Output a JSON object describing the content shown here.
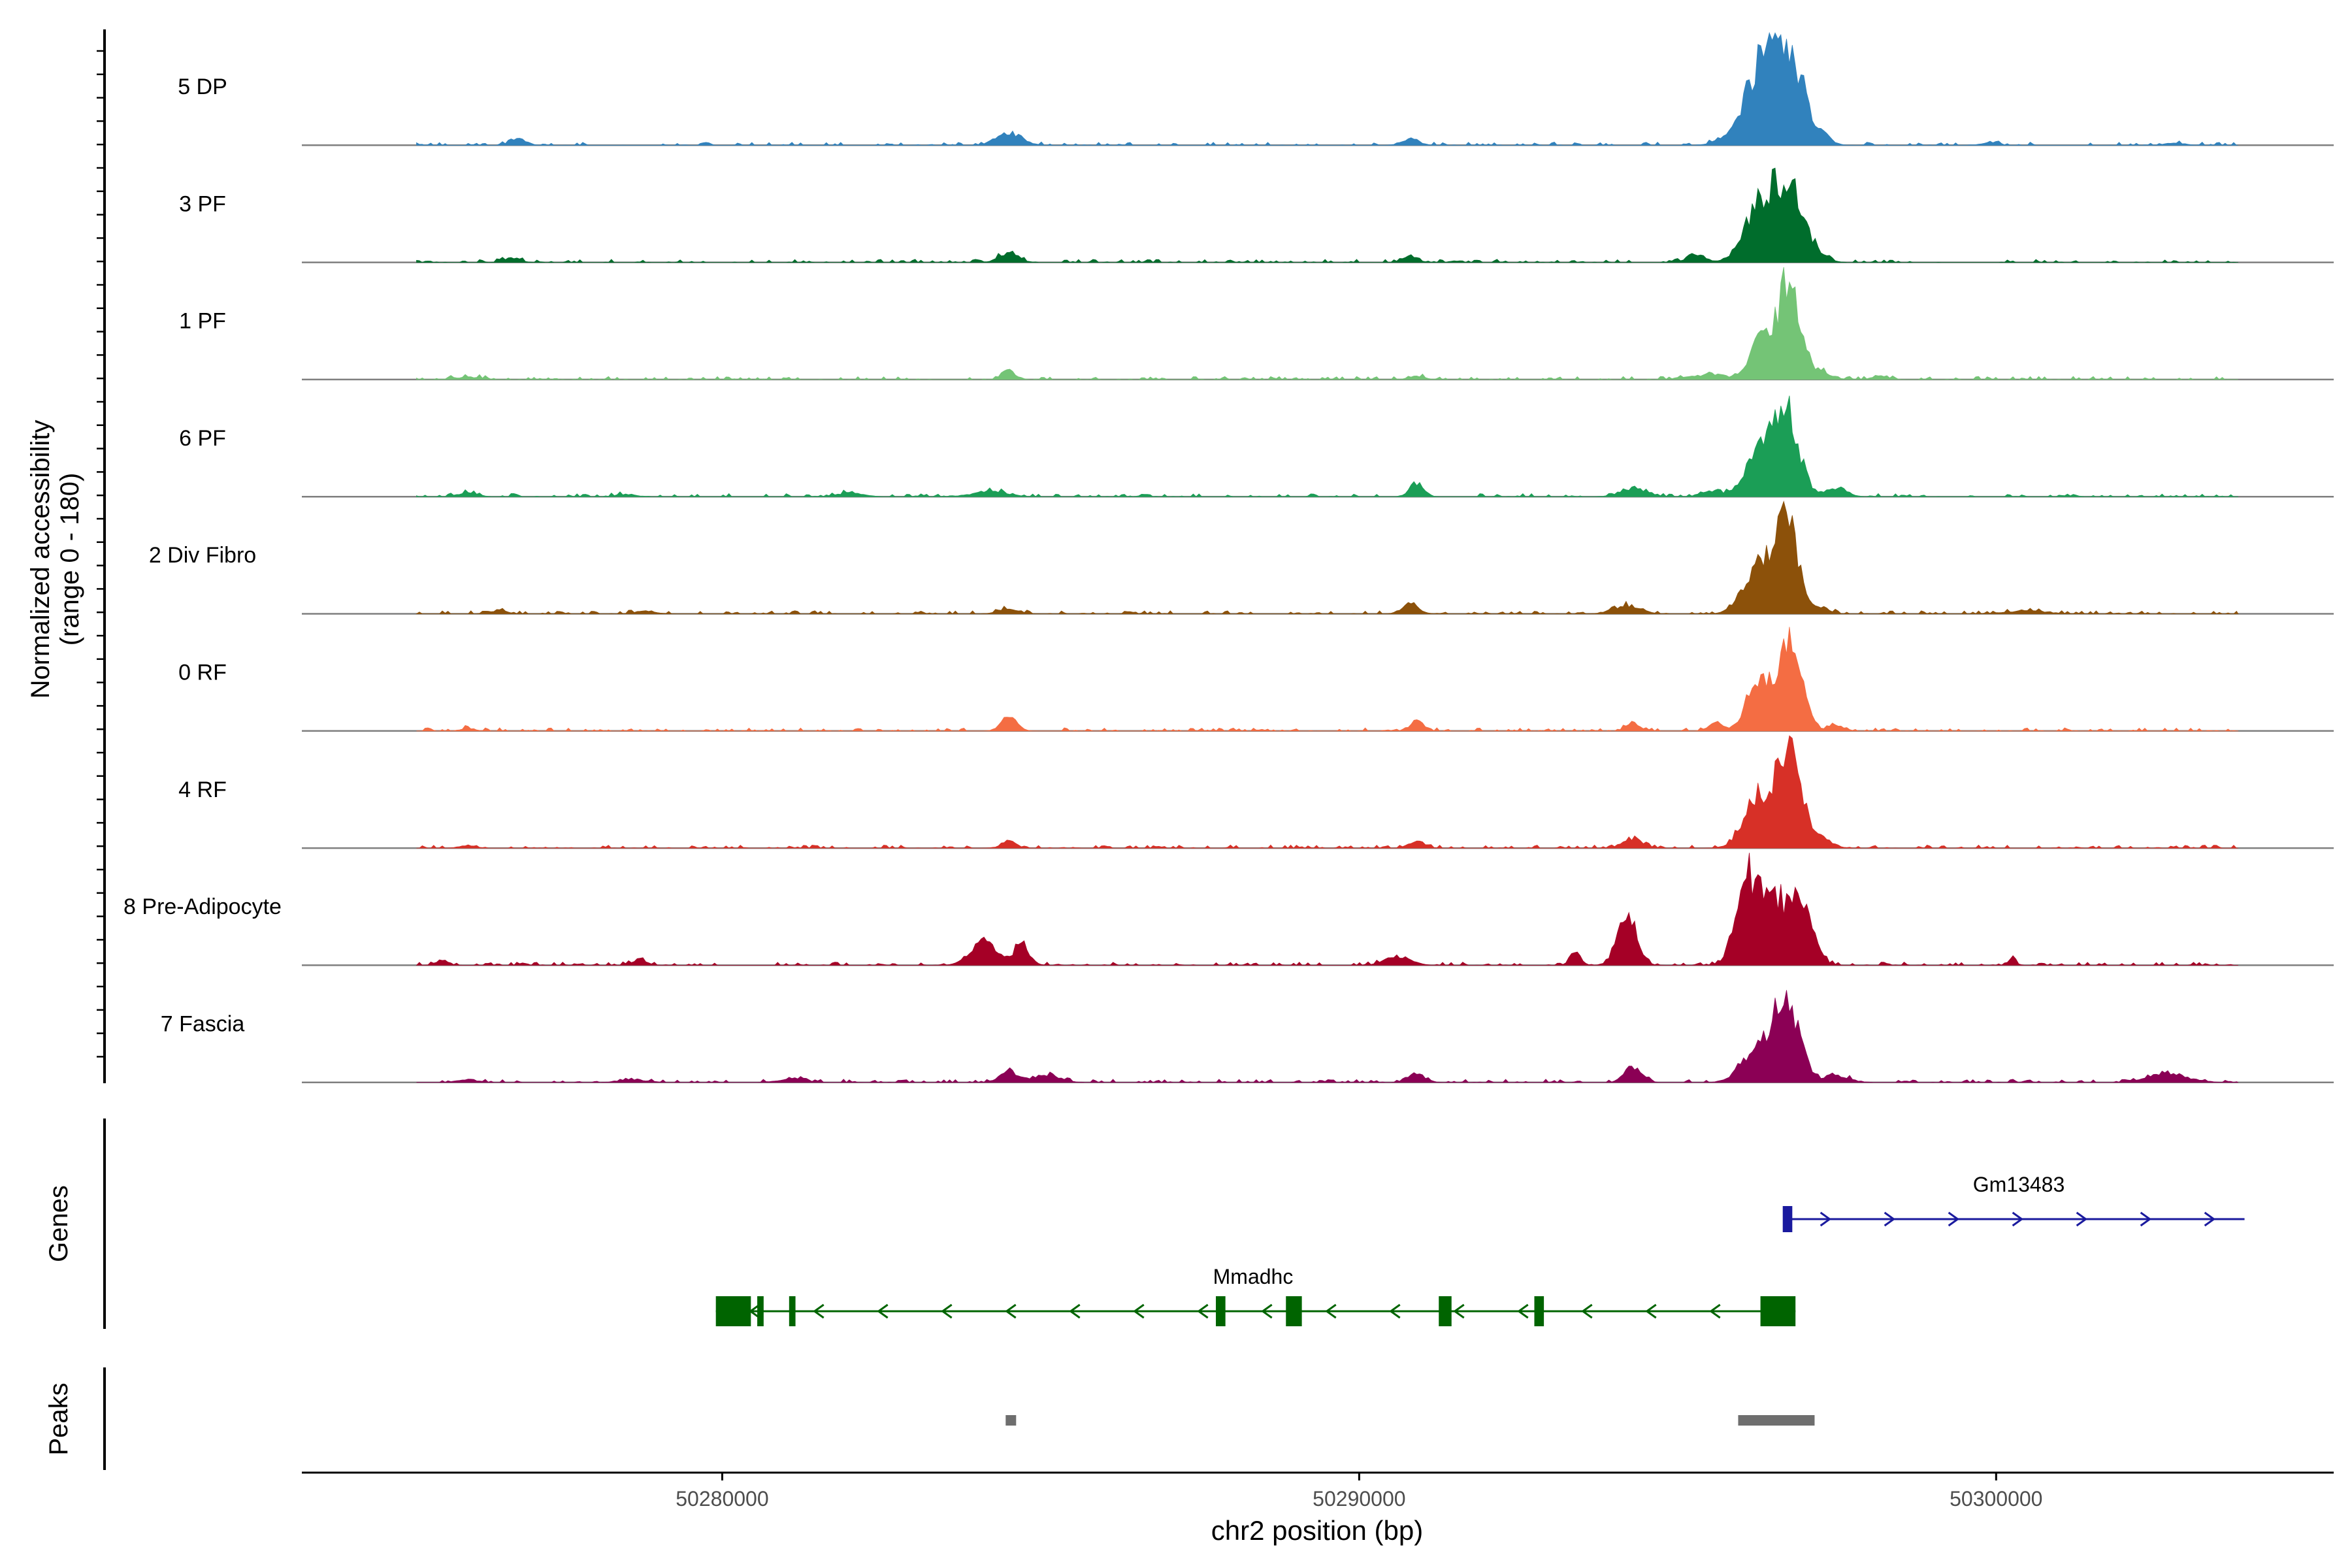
{
  "chart_data": {
    "type": "area",
    "title": "",
    "ylabel_line1": "Normalized accessibility",
    "ylabel_line2": "(range 0 - 180)",
    "xlabel": "chr2 position (bp)",
    "xlim": [
      50273400,
      50305300
    ],
    "xticks": [
      {
        "value": 50280000,
        "label": "50280000"
      },
      {
        "value": 50290000,
        "label": "50290000"
      },
      {
        "value": 50300000,
        "label": "50300000"
      }
    ],
    "ylim": [
      0,
      180
    ],
    "series": [
      {
        "name": "5 DP",
        "color": "#3182BD",
        "peaks": [
          [
            50276800,
            120,
            11
          ],
          [
            50284500,
            190,
            21
          ],
          [
            50290800,
            130,
            11
          ],
          [
            50295700,
            160,
            7
          ],
          [
            50296200,
            230,
            85
          ],
          [
            50296450,
            200,
            56
          ],
          [
            50296750,
            250,
            140
          ],
          [
            50297300,
            120,
            8
          ],
          [
            50299900,
            140,
            4
          ],
          [
            50302800,
            150,
            4
          ]
        ]
      },
      {
        "name": "3 PF",
        "color": "#006D2C",
        "peaks": [
          [
            50276700,
            120,
            8
          ],
          [
            50284500,
            150,
            15
          ],
          [
            50290800,
            120,
            10
          ],
          [
            50295300,
            150,
            12
          ],
          [
            50296200,
            200,
            70
          ],
          [
            50296450,
            160,
            40
          ],
          [
            50296750,
            230,
            120
          ],
          [
            50297300,
            120,
            7
          ]
        ]
      },
      {
        "name": "1 PF",
        "color": "#74C476",
        "peaks": [
          [
            50276000,
            200,
            4
          ],
          [
            50284500,
            110,
            14
          ],
          [
            50290900,
            120,
            6
          ],
          [
            50295500,
            300,
            8
          ],
          [
            50296300,
            160,
            65
          ],
          [
            50296750,
            180,
            160
          ],
          [
            50297300,
            150,
            10
          ],
          [
            50298200,
            120,
            6
          ]
        ]
      },
      {
        "name": "6 PF",
        "color": "#1B9E56",
        "peaks": [
          [
            50276000,
            150,
            6
          ],
          [
            50278500,
            150,
            4
          ],
          [
            50282000,
            200,
            6
          ],
          [
            50284200,
            250,
            9
          ],
          [
            50290900,
            110,
            22
          ],
          [
            50294300,
            200,
            14
          ],
          [
            50295500,
            150,
            8
          ],
          [
            50296250,
            220,
            65
          ],
          [
            50296700,
            200,
            138
          ],
          [
            50297500,
            150,
            15
          ]
        ]
      },
      {
        "name": "2 Div Fibro",
        "color": "#8C510A",
        "peaks": [
          [
            50276500,
            120,
            6
          ],
          [
            50278800,
            150,
            5
          ],
          [
            50284500,
            150,
            8
          ],
          [
            50290800,
            130,
            15
          ],
          [
            50294200,
            200,
            14
          ],
          [
            50296250,
            220,
            75
          ],
          [
            50296700,
            180,
            150
          ],
          [
            50297200,
            150,
            12
          ],
          [
            50300500,
            300,
            5
          ]
        ]
      },
      {
        "name": "0 RF",
        "color": "#F46D43",
        "peaks": [
          [
            50276000,
            100,
            5
          ],
          [
            50284500,
            120,
            24
          ],
          [
            50290900,
            100,
            16
          ],
          [
            50294300,
            100,
            14
          ],
          [
            50295600,
            120,
            12
          ],
          [
            50296250,
            180,
            75
          ],
          [
            50296750,
            190,
            140
          ],
          [
            50297500,
            110,
            10
          ]
        ]
      },
      {
        "name": "4 RF",
        "color": "#D73027",
        "peaks": [
          [
            50276000,
            120,
            5
          ],
          [
            50284500,
            120,
            10
          ],
          [
            50290900,
            130,
            9
          ],
          [
            50294300,
            160,
            15
          ],
          [
            50296250,
            220,
            80
          ],
          [
            50296750,
            200,
            160
          ],
          [
            50297300,
            150,
            12
          ]
        ]
      },
      {
        "name": "8 Pre-Adipocyte",
        "color": "#A50026",
        "peaks": [
          [
            50275600,
            100,
            8
          ],
          [
            50278700,
            120,
            8
          ],
          [
            50284100,
            200,
            40
          ],
          [
            50284700,
            120,
            34
          ],
          [
            50290600,
            200,
            14
          ],
          [
            50293400,
            80,
            20
          ],
          [
            50294200,
            150,
            80
          ],
          [
            50296100,
            180,
            148
          ],
          [
            50296500,
            160,
            90
          ],
          [
            50296900,
            200,
            100
          ],
          [
            50300250,
            60,
            10
          ]
        ]
      },
      {
        "name": "7 Fascia",
        "color": "#8B0055",
        "peaks": [
          [
            50276000,
            150,
            5
          ],
          [
            50278600,
            200,
            5
          ],
          [
            50281100,
            200,
            6
          ],
          [
            50284500,
            150,
            17
          ],
          [
            50285100,
            200,
            12
          ],
          [
            50290900,
            130,
            14
          ],
          [
            50294300,
            130,
            26
          ],
          [
            50296200,
            220,
            50
          ],
          [
            50296700,
            200,
            140
          ],
          [
            50297500,
            200,
            10
          ],
          [
            50302700,
            300,
            14
          ]
        ]
      }
    ],
    "genes_label": "Genes",
    "genes": [
      {
        "name": "Gm13483",
        "strand": "+",
        "color": "#1A1A9E",
        "start": 50296700,
        "end": 50303900,
        "exons": [
          [
            50296650,
            50296800
          ]
        ]
      },
      {
        "name": "Mmadhc",
        "strand": "-",
        "color": "#006400",
        "start": 50279900,
        "end": 50296850,
        "exons": [
          [
            50279900,
            50280450
          ],
          [
            50280550,
            50280650
          ],
          [
            50281050,
            50281150
          ],
          [
            50287750,
            50287900
          ],
          [
            50288850,
            50289100
          ],
          [
            50291250,
            50291450
          ],
          [
            50292750,
            50292900
          ],
          [
            50296300,
            50296850
          ]
        ]
      }
    ],
    "peaks_label": "Peaks",
    "peak_regions": [
      [
        50284450,
        50284600
      ],
      [
        50295950,
        50297150
      ]
    ]
  }
}
